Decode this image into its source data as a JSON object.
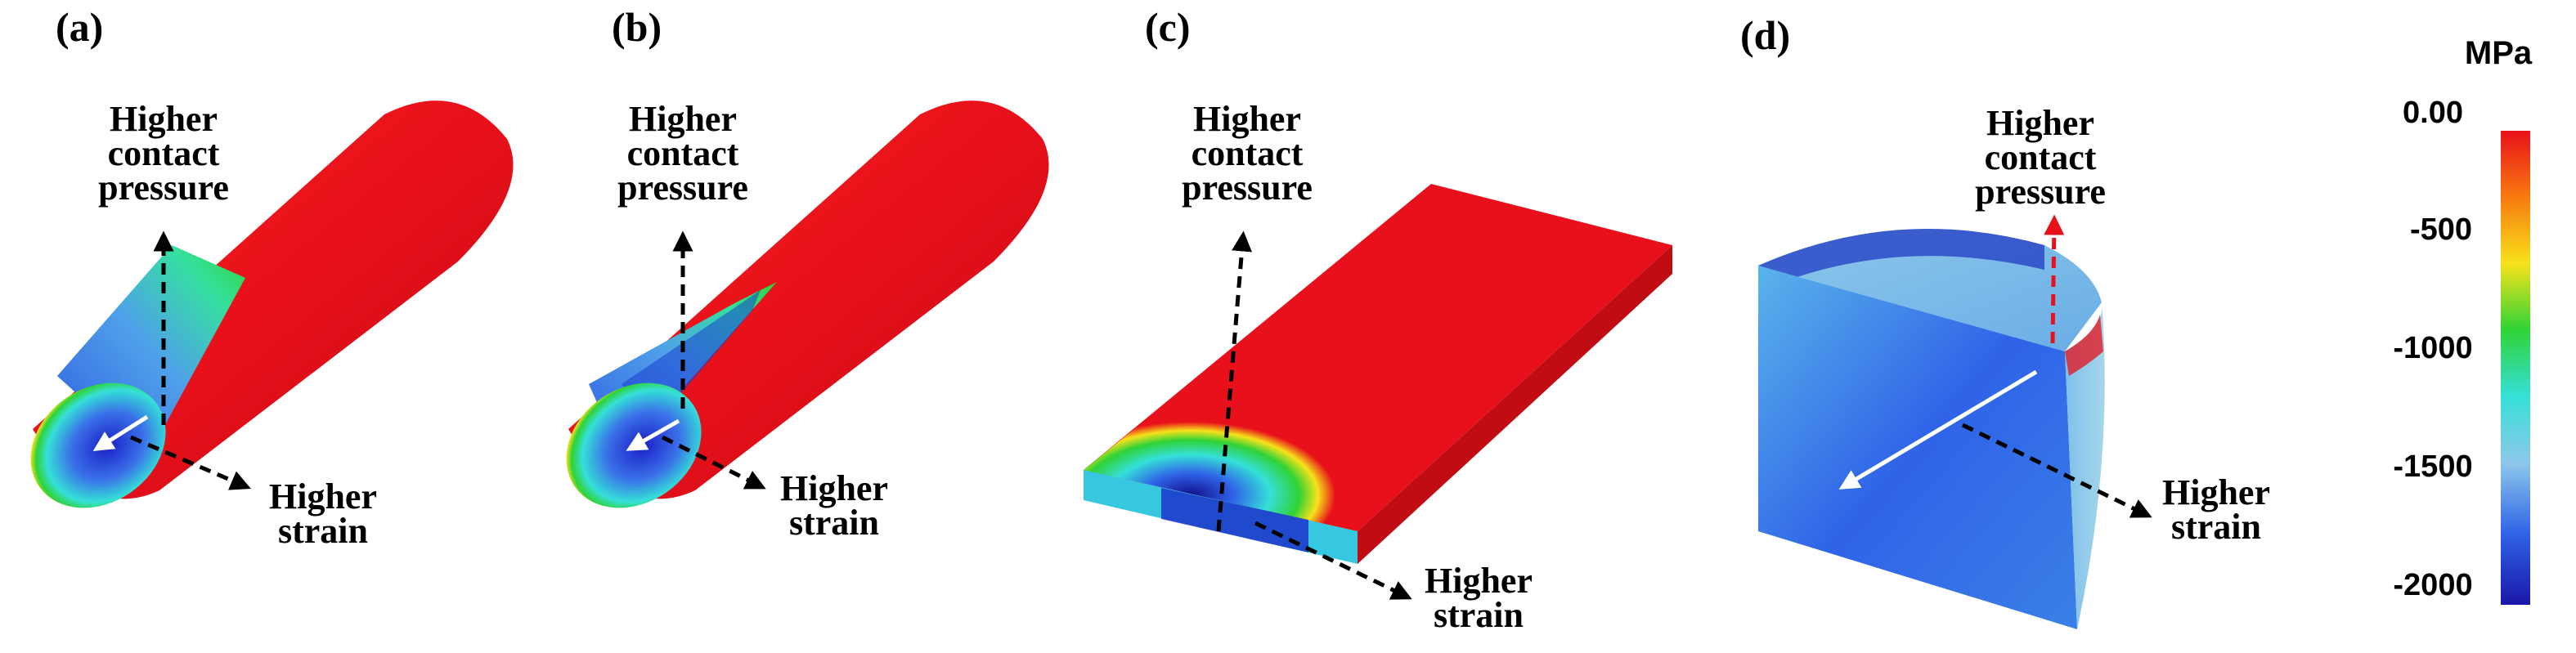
{
  "panels": [
    {
      "label": "(a)",
      "up": [
        "Higher",
        "contact",
        "pressure"
      ],
      "side": [
        "Higher",
        "strain"
      ]
    },
    {
      "label": "(b)",
      "up": [
        "Higher",
        "contact",
        "pressure"
      ],
      "side": [
        "Higher",
        "strain"
      ]
    },
    {
      "label": "(c)",
      "up": [
        "Higher",
        "contact",
        "pressure"
      ],
      "side": [
        "Higher",
        "strain"
      ]
    },
    {
      "label": "(d)",
      "up": [
        "Higher",
        "contact",
        "pressure"
      ],
      "side": [
        "Higher",
        "strain"
      ]
    }
  ],
  "colorbar": {
    "unit": "MPa",
    "ticks": [
      "0.00",
      "-500",
      "-1000",
      "-1500",
      "-2000"
    ],
    "colors": [
      "#e8101a",
      "#f97a10",
      "#f7e21a",
      "#2fd336",
      "#35e0d8",
      "#8ec8ea",
      "#2f63e8",
      "#1a16a8"
    ]
  },
  "colors": {
    "high_stress": "#e8101a",
    "low_stress": "#1a16a8",
    "arrow_black": "#000000",
    "arrow_white": "#ffffff",
    "arrow_red": "#e8101a"
  }
}
